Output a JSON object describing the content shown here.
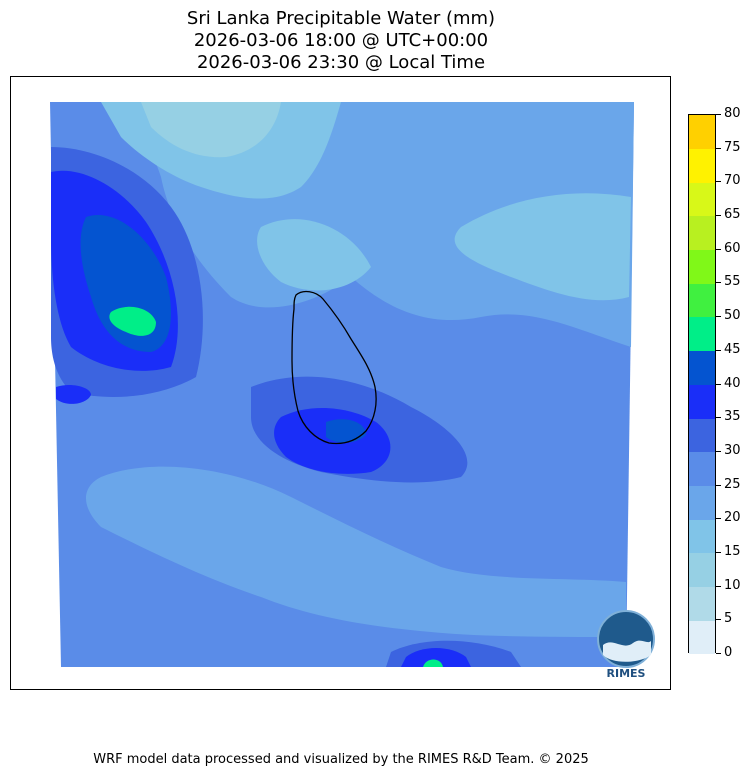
{
  "title": {
    "line1": "Sri Lanka Precipitable Water (mm)",
    "line2": "2026-03-06 18:00 @ UTC+00:00",
    "line3": "2026-03-06 23:30 @ Local Time"
  },
  "colorbar": {
    "levels": [
      "0",
      "5",
      "10",
      "15",
      "20",
      "25",
      "30",
      "35",
      "40",
      "45",
      "50",
      "55",
      "60",
      "65",
      "70",
      "75",
      "80"
    ],
    "colors": [
      "#e0eef8",
      "#b0dae8",
      "#96d0e4",
      "#80c4e8",
      "#6aa6ea",
      "#5a8ce8",
      "#3c64e0",
      "#1a2ef8",
      "#0454d0",
      "#00ee88",
      "#40f040",
      "#80f818",
      "#b8f020",
      "#d8f818",
      "#fff200",
      "#ffd000"
    ]
  },
  "map": {
    "region": "Sri Lanka",
    "logo_text": "RIMES"
  },
  "footer": "WRF model data processed and visualized by the RIMES R&D Team. © 2025"
}
